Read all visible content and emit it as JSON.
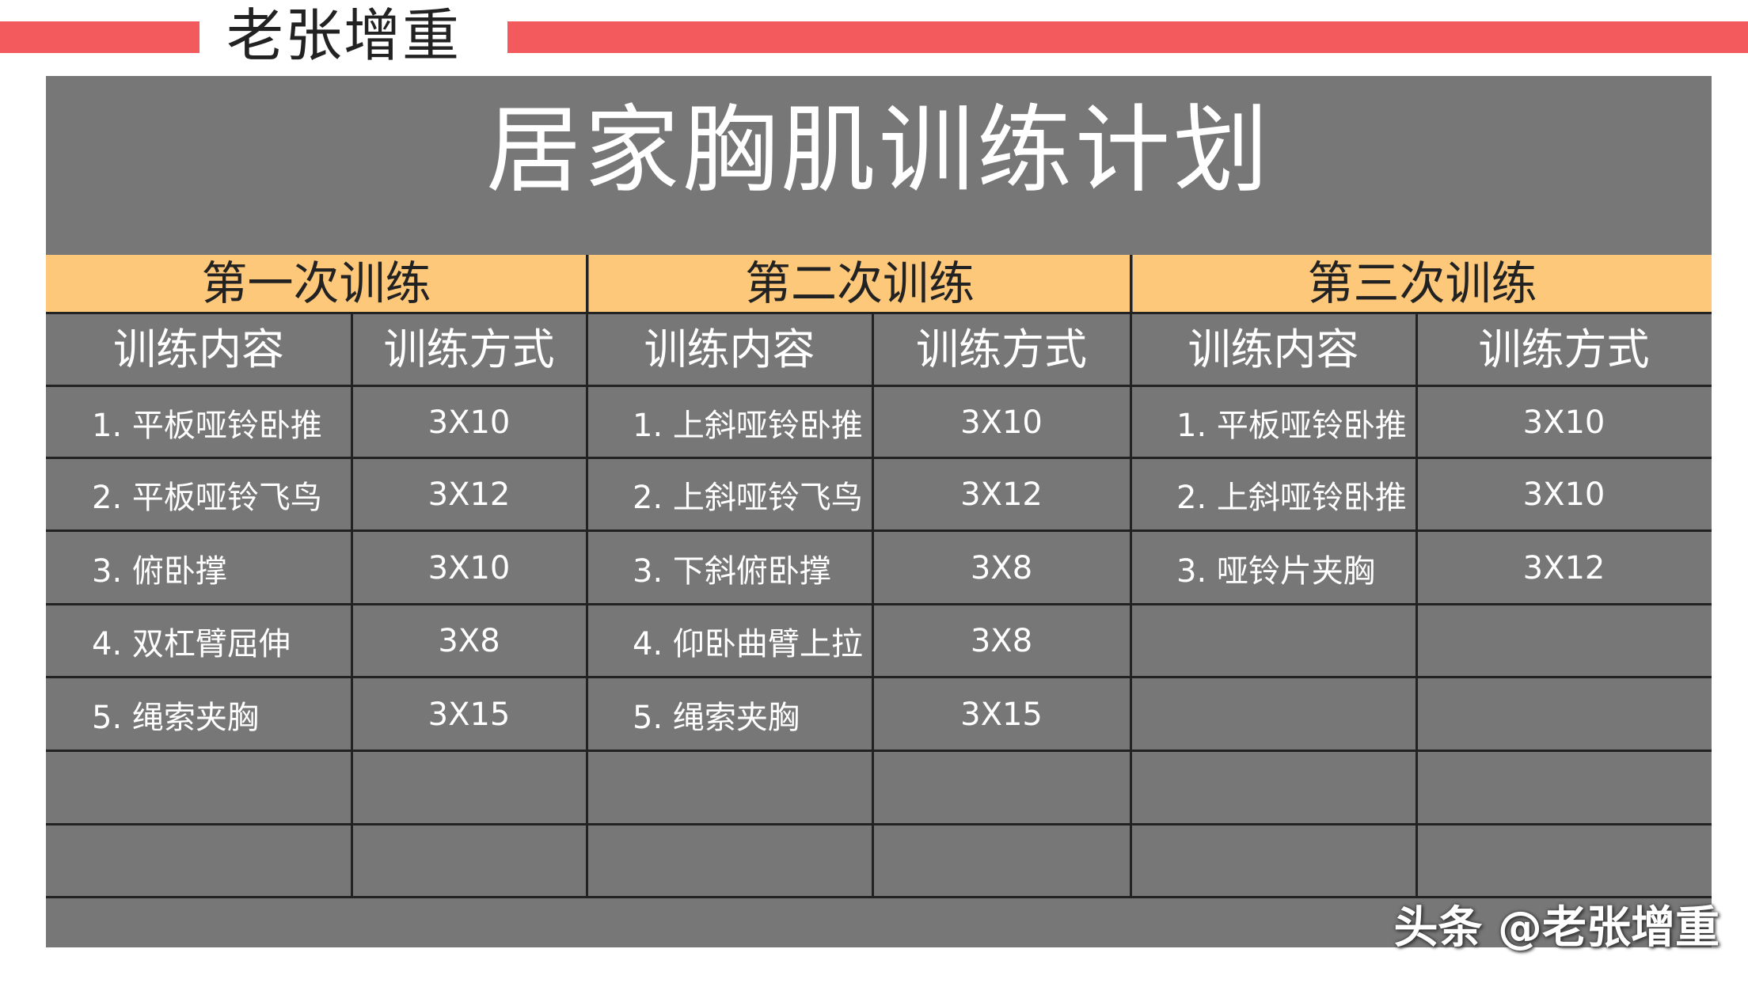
{
  "brand": "老张增重",
  "title": "居家胸肌训练计划",
  "column_headers": {
    "content": "训练内容",
    "method": "训练方式"
  },
  "sessions": [
    {
      "label": "第一次训练",
      "rows": [
        {
          "content": "1. 平板哑铃卧推",
          "method": "3X10"
        },
        {
          "content": "2. 平板哑铃飞鸟",
          "method": "3X12"
        },
        {
          "content": "3. 俯卧撑",
          "method": "3X10"
        },
        {
          "content": "4. 双杠臂屈伸",
          "method": "3X8"
        },
        {
          "content": "5. 绳索夹胸",
          "method": "3X15"
        },
        {
          "content": "",
          "method": ""
        },
        {
          "content": "",
          "method": ""
        }
      ]
    },
    {
      "label": "第二次训练",
      "rows": [
        {
          "content": "1. 上斜哑铃卧推",
          "method": "3X10"
        },
        {
          "content": "2. 上斜哑铃飞鸟",
          "method": "3X12"
        },
        {
          "content": "3. 下斜俯卧撑",
          "method": "3X8"
        },
        {
          "content": "4. 仰卧曲臂上拉",
          "method": "3X8"
        },
        {
          "content": "5. 绳索夹胸",
          "method": "3X15"
        },
        {
          "content": "",
          "method": ""
        },
        {
          "content": "",
          "method": ""
        }
      ]
    },
    {
      "label": "第三次训练",
      "rows": [
        {
          "content": "1. 平板哑铃卧推",
          "method": "3X10"
        },
        {
          "content": "2. 上斜哑铃卧推",
          "method": "3X10"
        },
        {
          "content": "3. 哑铃片夹胸",
          "method": "3X12"
        },
        {
          "content": "",
          "method": ""
        },
        {
          "content": "",
          "method": ""
        },
        {
          "content": "",
          "method": ""
        },
        {
          "content": "",
          "method": ""
        }
      ]
    }
  ],
  "watermark": "头条 @老张增重",
  "colors": {
    "banner": "#f25a5e",
    "board": "#777777",
    "session_header": "#fdc87a",
    "grid_line": "#222222"
  }
}
